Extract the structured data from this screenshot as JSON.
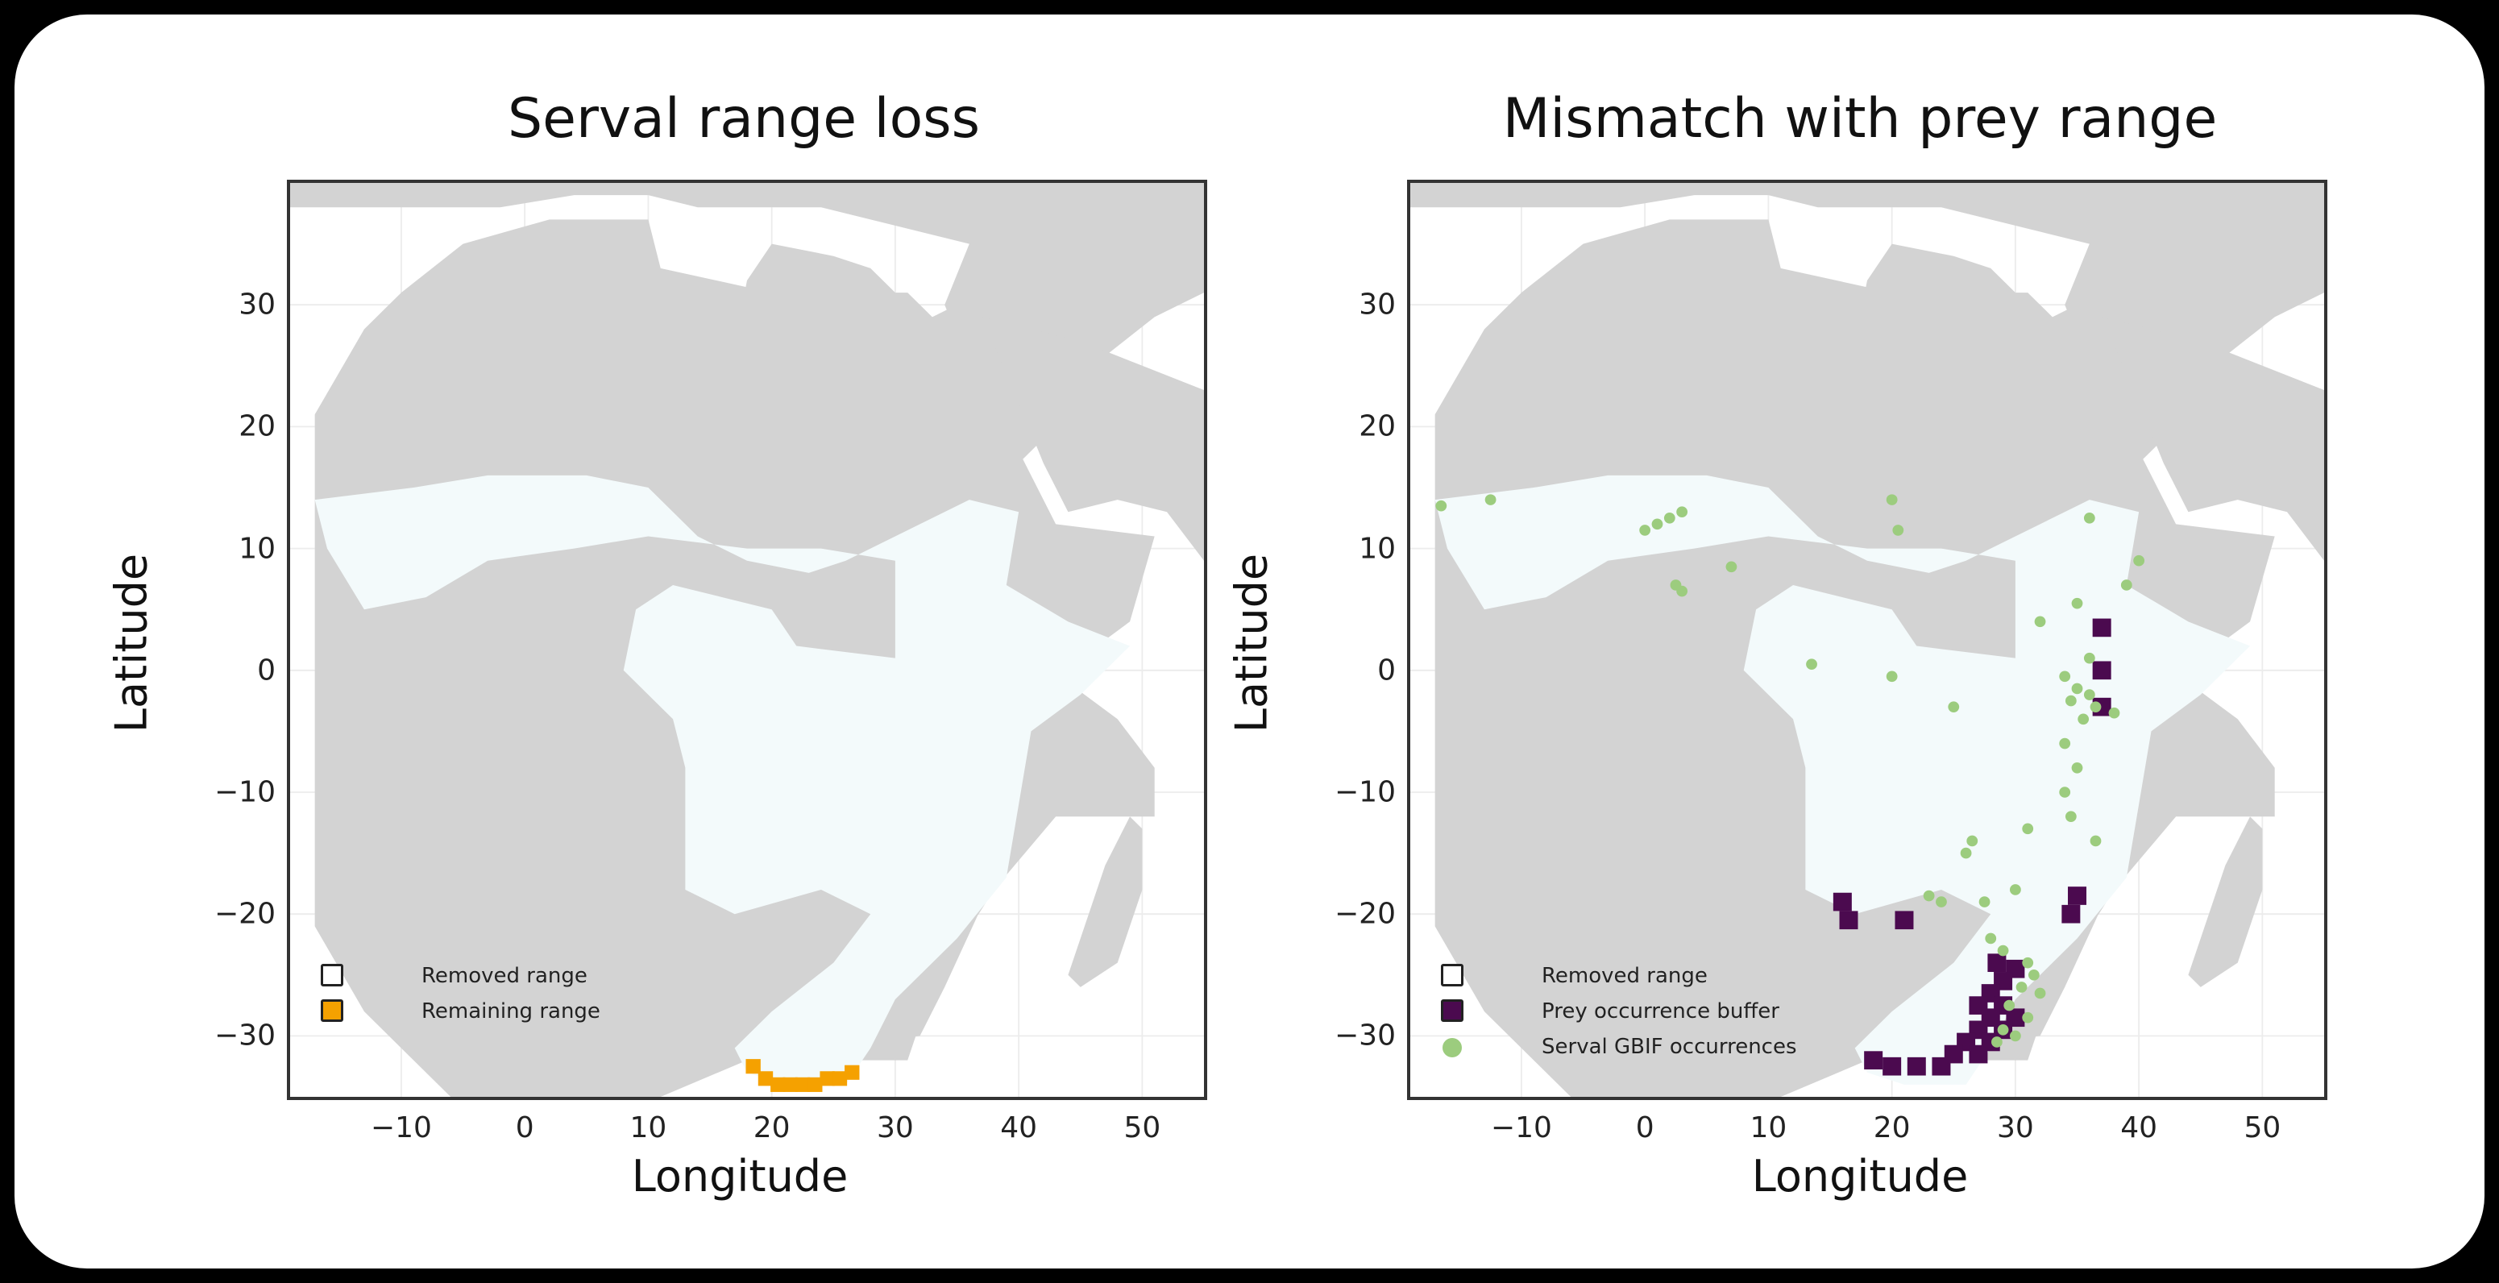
{
  "colors": {
    "land": "#d3d3d3",
    "range": "#f3fafb",
    "remaining": "#f5a100",
    "prey": "#4b0a4f",
    "gbif": "#9ccc7e"
  },
  "panels": [
    {
      "title": "Serval range loss",
      "xlabel": "Longitude",
      "ylabel": "Latitude",
      "xticks": [
        "−10",
        "0",
        "10",
        "20",
        "30",
        "40",
        "50"
      ],
      "yticks": [
        "30",
        "20",
        "10",
        "0",
        "−10",
        "−20",
        "−30"
      ],
      "legend": [
        "Removed range",
        "Remaining range"
      ]
    },
    {
      "title": "Mismatch with prey range",
      "xlabel": "Longitude",
      "ylabel": "Latitude",
      "xticks": [
        "−10",
        "0",
        "10",
        "20",
        "30",
        "40",
        "50"
      ],
      "yticks": [
        "30",
        "20",
        "10",
        "0",
        "−10",
        "−20",
        "−30"
      ],
      "legend": [
        "Removed range",
        "Prey occurrence buffer",
        "Serval GBIF occurrences"
      ]
    }
  ],
  "chart_data": [
    {
      "type": "map",
      "title": "Serval range loss",
      "xlabel": "Longitude",
      "ylabel": "Latitude",
      "xlim": [
        -19,
        55
      ],
      "ylim": [
        -35,
        40
      ],
      "series": [
        {
          "name": "Removed range",
          "color": "#f3fafb"
        },
        {
          "name": "Remaining range",
          "color": "#f5a100",
          "cells": [
            [
              18.5,
              -32.5
            ],
            [
              19.5,
              -33.5
            ],
            [
              20.5,
              -34
            ],
            [
              21.5,
              -34
            ],
            [
              22.5,
              -34
            ],
            [
              23.5,
              -34
            ],
            [
              24.5,
              -33.5
            ],
            [
              25.5,
              -33.5
            ],
            [
              26.5,
              -33
            ]
          ]
        }
      ]
    },
    {
      "type": "map",
      "title": "Mismatch with prey range",
      "xlabel": "Longitude",
      "ylabel": "Latitude",
      "xlim": [
        -19,
        55
      ],
      "ylim": [
        -35,
        40
      ],
      "series": [
        {
          "name": "Removed range",
          "color": "#f3fafb"
        },
        {
          "name": "Prey occurrence buffer",
          "color": "#4b0a4f",
          "cells": [
            [
              37,
              3.5
            ],
            [
              37,
              0
            ],
            [
              37,
              -3
            ],
            [
              16,
              -19
            ],
            [
              16.5,
              -20.5
            ],
            [
              35,
              -18.5
            ],
            [
              34.5,
              -20
            ],
            [
              21,
              -20.5
            ],
            [
              28.5,
              -24
            ],
            [
              30,
              -24.5
            ],
            [
              29,
              -25.5
            ],
            [
              28,
              -26.5
            ],
            [
              27,
              -27.5
            ],
            [
              29,
              -27.5
            ],
            [
              28,
              -28.5
            ],
            [
              30,
              -28.5
            ],
            [
              27,
              -29.5
            ],
            [
              29,
              -29.5
            ],
            [
              26,
              -30.5
            ],
            [
              28,
              -30.5
            ],
            [
              25,
              -31.5
            ],
            [
              27,
              -31.5
            ],
            [
              24,
              -32.5
            ],
            [
              22,
              -32.5
            ],
            [
              20,
              -32.5
            ],
            [
              18.5,
              -32
            ]
          ]
        },
        {
          "name": "Serval GBIF occurrences",
          "color": "#9ccc7e",
          "points": [
            [
              -16.5,
              13.5
            ],
            [
              -12.5,
              14
            ],
            [
              0,
              11.5
            ],
            [
              1,
              12
            ],
            [
              2,
              12.5
            ],
            [
              3,
              13
            ],
            [
              2.5,
              7
            ],
            [
              3,
              6.5
            ],
            [
              7,
              8.5
            ],
            [
              20,
              14
            ],
            [
              20.5,
              11.5
            ],
            [
              36,
              12.5
            ],
            [
              40,
              9
            ],
            [
              39,
              7
            ],
            [
              35,
              5.5
            ],
            [
              32,
              4
            ],
            [
              36,
              1
            ],
            [
              34,
              -0.5
            ],
            [
              35,
              -1.5
            ],
            [
              36,
              -2
            ],
            [
              34.5,
              -2.5
            ],
            [
              36.5,
              -3
            ],
            [
              38,
              -3.5
            ],
            [
              35.5,
              -4
            ],
            [
              13.5,
              0.5
            ],
            [
              20,
              -0.5
            ],
            [
              25,
              -3
            ],
            [
              34,
              -6
            ],
            [
              35,
              -8
            ],
            [
              34,
              -10
            ],
            [
              34.5,
              -12
            ],
            [
              31,
              -13
            ],
            [
              36.5,
              -14
            ],
            [
              26.5,
              -14
            ],
            [
              26,
              -15
            ],
            [
              30,
              -18
            ],
            [
              24,
              -19
            ],
            [
              23,
              -18.5
            ],
            [
              27.5,
              -19
            ],
            [
              28,
              -22
            ],
            [
              31,
              -24
            ],
            [
              31.5,
              -25
            ],
            [
              30.5,
              -26
            ],
            [
              32,
              -26.5
            ],
            [
              29.5,
              -27.5
            ],
            [
              31,
              -28.5
            ],
            [
              29,
              -29.5
            ],
            [
              28.5,
              -30.5
            ],
            [
              30,
              -30
            ],
            [
              29,
              -23
            ]
          ]
        }
      ]
    }
  ]
}
